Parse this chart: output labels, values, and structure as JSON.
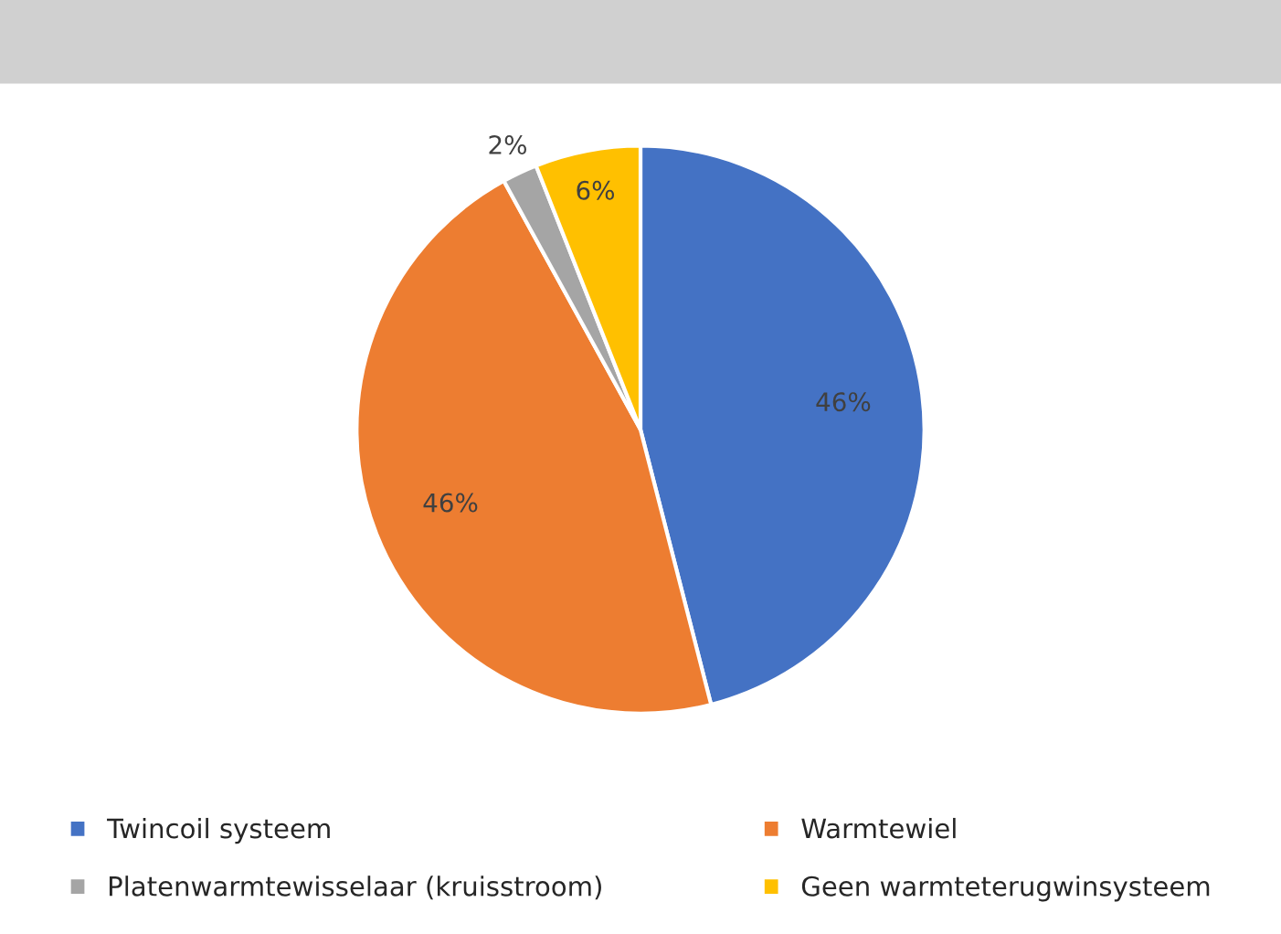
{
  "chart_data": {
    "type": "pie",
    "categories": [
      "Twincoil systeem",
      "Warmtewiel",
      "Platenwarmtewisselaar (kruisstroom)",
      "Geen warmteterugwinsysteem"
    ],
    "values": [
      46,
      46,
      2,
      6
    ],
    "colors": [
      "#4472c4",
      "#ed7d31",
      "#a5a5a5",
      "#ffc000"
    ],
    "value_labels": [
      "46%",
      "46%",
      "2%",
      "6%"
    ],
    "legend": "bottom"
  }
}
